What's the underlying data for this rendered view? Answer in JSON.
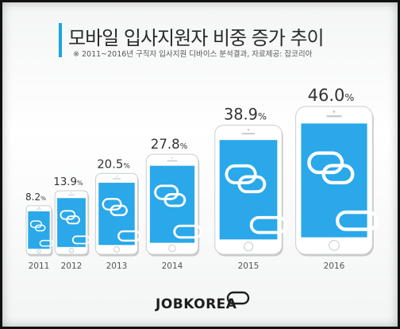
{
  "header": {
    "title": "모바일 입사지원자 비중 증가 추이",
    "subtitle": "※ 2011~2016년 구직자 입사지원 디바이스 분석결과, 자료제공: 잡코리아"
  },
  "brand": {
    "logo_text": "JOBKOREA"
  },
  "colors": {
    "accent": "#1aa5e0",
    "screen": "#2aa8ea",
    "body": "#ffffff",
    "value_text": "#333333",
    "year_text": "#555555"
  },
  "chart_data": {
    "type": "bar",
    "title": "모바일 입사지원자 비중 증가 추이",
    "xlabel": "",
    "ylabel": "",
    "categories": [
      "2011",
      "2012",
      "2013",
      "2014",
      "2015",
      "2016"
    ],
    "values": [
      8.2,
      13.9,
      20.5,
      27.8,
      38.9,
      46.0
    ],
    "value_labels": [
      "8.2",
      "13.9",
      "20.5",
      "27.8",
      "38.9",
      "46.0"
    ],
    "unit": "%",
    "mark_style": "smartphone",
    "ylim": [
      0,
      46.0
    ],
    "grid": false,
    "legend": "none"
  }
}
